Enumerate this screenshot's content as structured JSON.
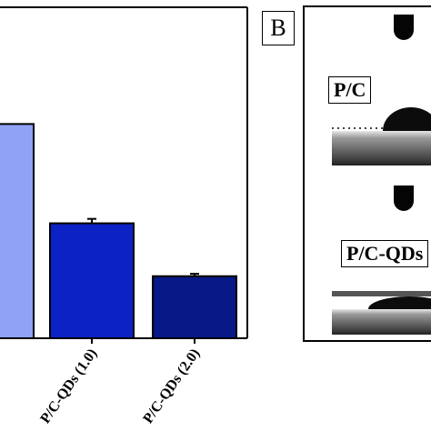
{
  "chart_data": {
    "type": "bar",
    "categories": [
      "",
      "P/C-QDs (1.0)",
      "P/C-QDs (2.0)"
    ],
    "values": [
      100.5,
      66.9,
      49.0
    ],
    "errors": [
      0,
      1.5,
      0.8
    ],
    "colors": [
      "#8fa2f5",
      "#0c22c4",
      "#071987"
    ],
    "ylim": [
      28,
      140
    ],
    "title": "",
    "xlabel": "",
    "ylabel": ""
  },
  "panel_b": {
    "letter": "B",
    "samples": [
      {
        "label": "P/C"
      },
      {
        "label": "P/C-QDs"
      }
    ]
  }
}
